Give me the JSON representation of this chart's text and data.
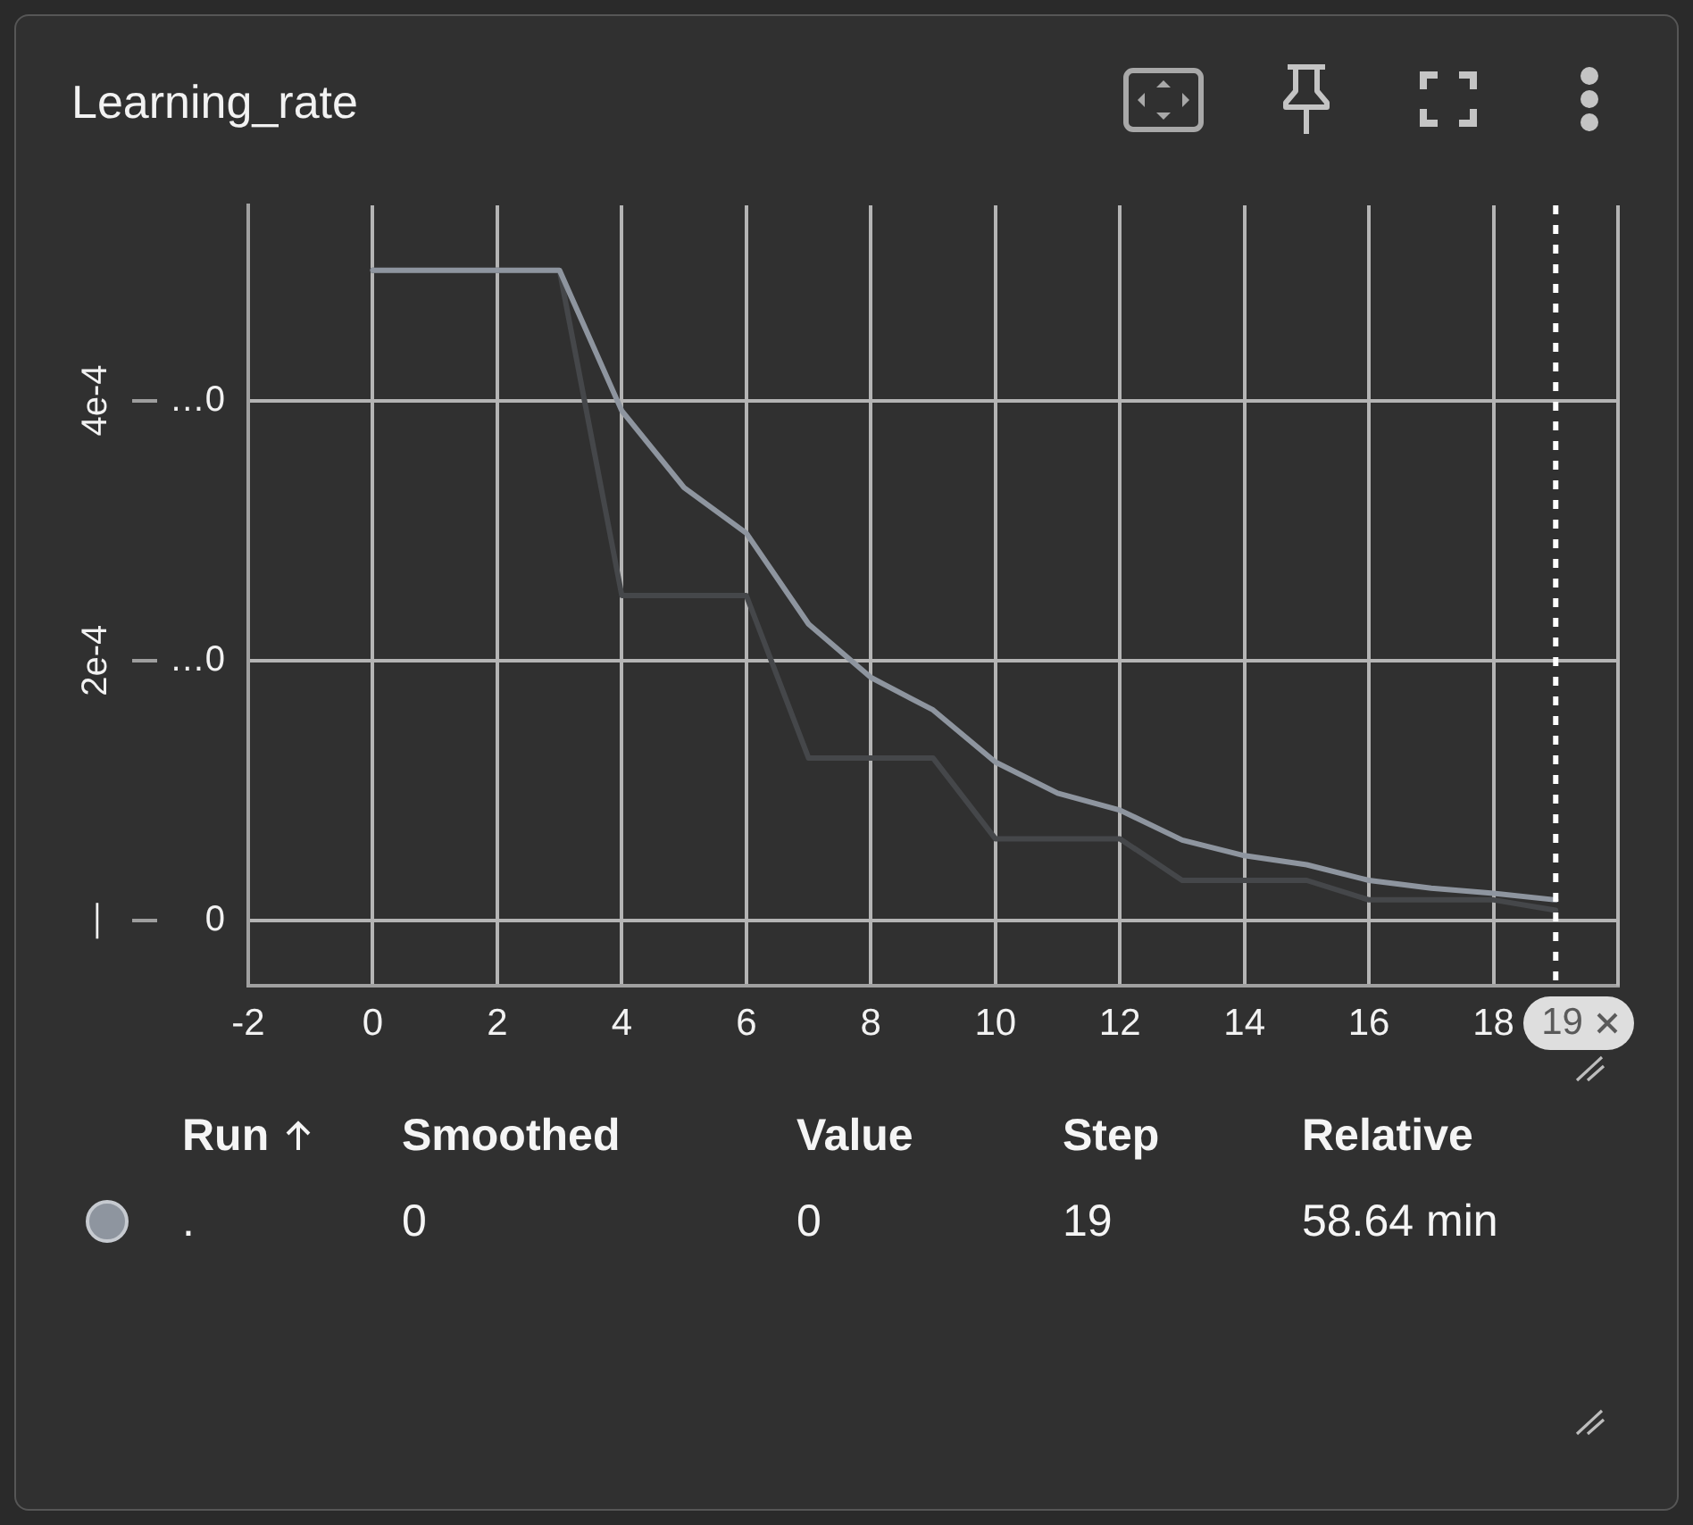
{
  "chart_data": {
    "type": "line",
    "title": "Learning_rate",
    "x": [
      0,
      1,
      2,
      3,
      4,
      5,
      6,
      7,
      8,
      9,
      10,
      11,
      12,
      13,
      14,
      15,
      16,
      17,
      18,
      19
    ],
    "series": [
      {
        "color": "#8e959f",
        "values": [
          0.0005,
          0.0005,
          0.0005,
          0.0005,
          0.000392,
          0.000333,
          0.000298,
          0.000228,
          0.000187,
          0.000162,
          0.000122,
          9.8e-05,
          8.5e-05,
          6.2e-05,
          5e-05,
          4.3e-05,
          3.1e-05,
          2.5e-05,
          2.1e-05,
          1.6e-05
        ]
      },
      {
        "color": "#45474a",
        "values": [
          0.0005,
          0.0005,
          0.0005,
          0.0005,
          0.00025,
          0.00025,
          0.00025,
          0.000125,
          0.000125,
          0.000125,
          6.3e-05,
          6.3e-05,
          6.3e-05,
          3.1e-05,
          3.1e-05,
          3.1e-05,
          1.6e-05,
          1.6e-05,
          1.6e-05,
          8e-06
        ]
      }
    ],
    "xlim": [
      -2,
      20
    ],
    "xticks": [
      -2,
      0,
      2,
      4,
      6,
      8,
      10,
      12,
      14,
      16,
      18
    ],
    "ylim": [
      -5e-05,
      0.00055
    ],
    "yticks": [
      0,
      {
        "value": 0.0002,
        "label": "…0"
      },
      {
        "value": 0.0004,
        "label": "…0"
      }
    ],
    "y2lim": [
      -5e-05,
      0.00055
    ],
    "y2ticks": [
      {
        "value": 0,
        "label": "—"
      },
      {
        "value": 0.0002,
        "label": "2e-4"
      },
      {
        "value": 0.0004,
        "label": "4e-4"
      }
    ],
    "ref_lines": [
      {
        "axis": "x",
        "value": 19,
        "color": "#ffffff",
        "line_style": "dotted"
      }
    ],
    "grid": true,
    "annotations": [
      "Run",
      "Smoothed",
      "Value",
      "Step",
      "Relative",
      ".",
      "0",
      "0",
      "19",
      "58.64 min"
    ]
  }
}
